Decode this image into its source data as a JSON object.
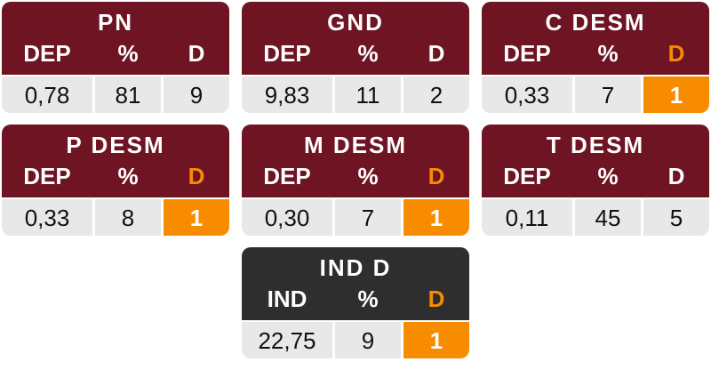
{
  "colors": {
    "header": "#6e1422",
    "header_dark": "#2e2e2e",
    "alert": "#f78c00",
    "cell": "#e8e8e8"
  },
  "cards": [
    {
      "title": "PN",
      "labels": [
        "DEP",
        "%",
        "D"
      ],
      "values": [
        "0,78",
        "81",
        "9"
      ],
      "alert": false
    },
    {
      "title": "GND",
      "labels": [
        "DEP",
        "%",
        "D"
      ],
      "values": [
        "9,83",
        "11",
        "2"
      ],
      "alert": false
    },
    {
      "title": "C DESM",
      "labels": [
        "DEP",
        "%",
        "D"
      ],
      "values": [
        "0,33",
        "7",
        "1"
      ],
      "alert": true
    },
    {
      "title": "P DESM",
      "labels": [
        "DEP",
        "%",
        "D"
      ],
      "values": [
        "0,33",
        "8",
        "1"
      ],
      "alert": true
    },
    {
      "title": "M DESM",
      "labels": [
        "DEP",
        "%",
        "D"
      ],
      "values": [
        "0,30",
        "7",
        "1"
      ],
      "alert": true
    },
    {
      "title": "T DESM",
      "labels": [
        "DEP",
        "%",
        "D"
      ],
      "values": [
        "0,11",
        "45",
        "5"
      ],
      "alert": false
    },
    {
      "title": "IND D",
      "labels": [
        "IND",
        "%",
        "D"
      ],
      "values": [
        "22,75",
        "9",
        "1"
      ],
      "alert": true
    }
  ]
}
